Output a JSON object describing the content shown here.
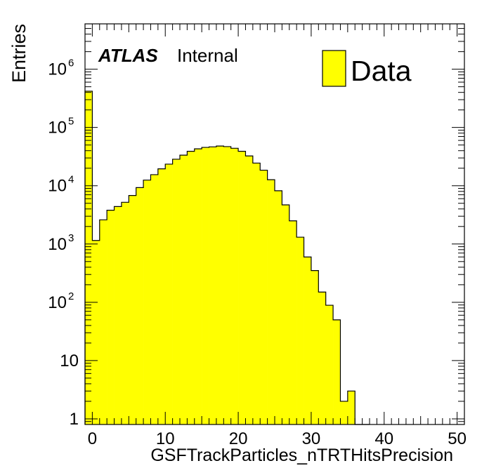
{
  "chart_data": {
    "type": "bar",
    "subtype": "histogram",
    "x_label": "GSFTrackParticles_nTRTHitsPrecision",
    "y_label": "Entries",
    "y_scale": "log",
    "xlim": [
      -1,
      51
    ],
    "ylim": [
      0.8,
      6000000
    ],
    "x_ticks": [
      {
        "value": 0,
        "label": "0"
      },
      {
        "value": 10,
        "label": "10"
      },
      {
        "value": 20,
        "label": "20"
      },
      {
        "value": 30,
        "label": "30"
      },
      {
        "value": 40,
        "label": "40"
      },
      {
        "value": 50,
        "label": "50"
      }
    ],
    "y_ticks": [
      {
        "value": 1,
        "base": "1",
        "exp": ""
      },
      {
        "value": 10,
        "base": "10",
        "exp": ""
      },
      {
        "value": 100,
        "base": "10",
        "exp": "2"
      },
      {
        "value": 1000,
        "base": "10",
        "exp": "3"
      },
      {
        "value": 10000,
        "base": "10",
        "exp": "4"
      },
      {
        "value": 100000,
        "base": "10",
        "exp": "5"
      },
      {
        "value": 1000000,
        "base": "10",
        "exp": "6"
      }
    ],
    "bin_width": 1,
    "bin_low_edges": [
      -1,
      0,
      1,
      2,
      3,
      4,
      5,
      6,
      7,
      8,
      9,
      10,
      11,
      12,
      13,
      14,
      15,
      16,
      17,
      18,
      19,
      20,
      21,
      22,
      23,
      24,
      25,
      26,
      27,
      28,
      29,
      30,
      31,
      32,
      33,
      34,
      35,
      36,
      37
    ],
    "values": [
      420000,
      1150,
      2600,
      3800,
      4400,
      5200,
      6800,
      9300,
      12500,
      15500,
      19500,
      23500,
      28500,
      33500,
      39000,
      43000,
      45500,
      46500,
      48000,
      47000,
      44000,
      39000,
      32500,
      24500,
      18500,
      12700,
      8200,
      4700,
      2500,
      1310,
      600,
      350,
      150,
      89,
      50,
      2,
      3,
      0,
      0
    ],
    "series": [
      {
        "name": "Data",
        "color": "#ffff00"
      }
    ],
    "fill_color": "#ffff00",
    "line_color": "#000000",
    "grid": false,
    "legend_position": "top-right"
  },
  "labels": {
    "atlas": "ATLAS",
    "internal": "Internal"
  }
}
